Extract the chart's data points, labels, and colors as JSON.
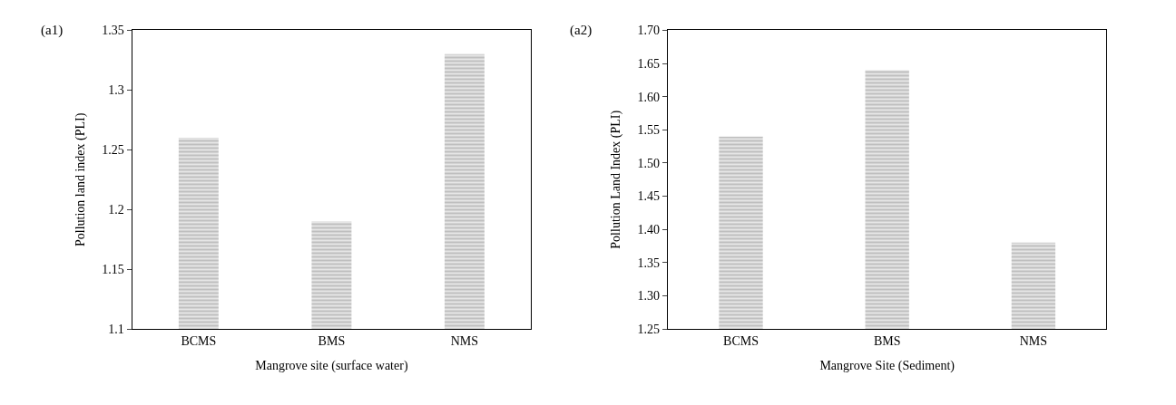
{
  "chart_data": [
    {
      "type": "bar",
      "title": "(a1)",
      "categories": [
        "BCMS",
        "BMS",
        "NMS"
      ],
      "values": [
        1.26,
        1.19,
        1.33
      ],
      "color": "#7f7f7f",
      "xlabel": "Mangrove site (surface water)",
      "ylabel": "Pollution land index (PLI)",
      "ylim": [
        1.1,
        1.35
      ],
      "yticks": [
        {
          "value": 1.1,
          "label": "1.1"
        },
        1.15,
        {
          "value": 1.2,
          "label": "1.2"
        },
        1.25,
        {
          "value": 1.3,
          "label": "1.3"
        },
        1.35
      ]
    },
    {
      "type": "bar",
      "title": "(a2)",
      "categories": [
        "BCMS",
        "BMS",
        "NMS"
      ],
      "values": [
        1.54,
        1.64,
        1.38
      ],
      "color": "#7f7f7f",
      "xlabel": "Mangrove Site (Sediment)",
      "ylabel": "Pollution Land Index (PLI)",
      "ylim": [
        1.25,
        1.7
      ],
      "yticks": [
        {
          "value": 1.25,
          "label": "1.25"
        },
        {
          "value": 1.3,
          "label": "1.30"
        },
        {
          "value": 1.35,
          "label": "1.35"
        },
        {
          "value": 1.4,
          "label": "1.40"
        },
        {
          "value": 1.45,
          "label": "1.45"
        },
        {
          "value": 1.5,
          "label": "1.50"
        },
        {
          "value": 1.55,
          "label": "1.55"
        },
        {
          "value": 1.6,
          "label": "1.60"
        },
        {
          "value": 1.65,
          "label": "1.65"
        },
        {
          "value": 1.7,
          "label": "1.70"
        }
      ]
    }
  ]
}
